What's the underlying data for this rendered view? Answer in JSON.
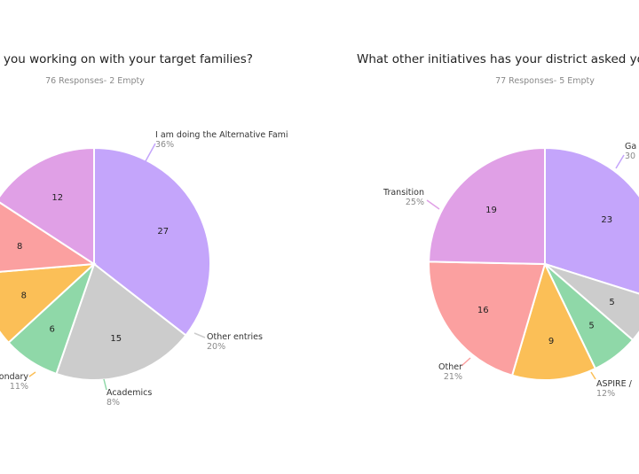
{
  "chart_data": [
    {
      "type": "pie",
      "title": "you working on with your target families?",
      "subtitle": "76 Responses- 2 Empty",
      "slices": [
        {
          "label": "I am doing the Alternative Fami",
          "value": 27,
          "percent": "36%",
          "color": "#c4a5fb"
        },
        {
          "label": "Other entries",
          "value": 15,
          "percent": "20%",
          "color": "#cccccc"
        },
        {
          "label": "Academics",
          "value": 6,
          "percent": "8%",
          "color": "#8fd8a8"
        },
        {
          "label": "ondary",
          "value": 8,
          "percent": "11%",
          "color": "#fbbf57"
        },
        {
          "label": "",
          "value": 8,
          "percent": "",
          "color": "#fba0a0"
        },
        {
          "label": "",
          "value": 12,
          "percent": "",
          "color": "#e0a0e6"
        }
      ]
    },
    {
      "type": "pie",
      "title": "What other initiatives has your district asked yo",
      "subtitle": "77 Responses- 5 Empty",
      "slices": [
        {
          "label": "Ga",
          "value": 23,
          "percent": "30",
          "color": "#c4a5fb"
        },
        {
          "label": "",
          "value": 5,
          "percent": "",
          "color": "#cccccc"
        },
        {
          "label": "",
          "value": 5,
          "percent": "",
          "color": "#8fd8a8"
        },
        {
          "label": "ASPIRE /",
          "value": 9,
          "percent": "12%",
          "color": "#fbbf57"
        },
        {
          "label": "Other",
          "value": 16,
          "percent": "21%",
          "color": "#fba0a0"
        },
        {
          "label": "Transition",
          "value": 19,
          "percent": "25%",
          "color": "#e0a0e6"
        }
      ]
    }
  ]
}
